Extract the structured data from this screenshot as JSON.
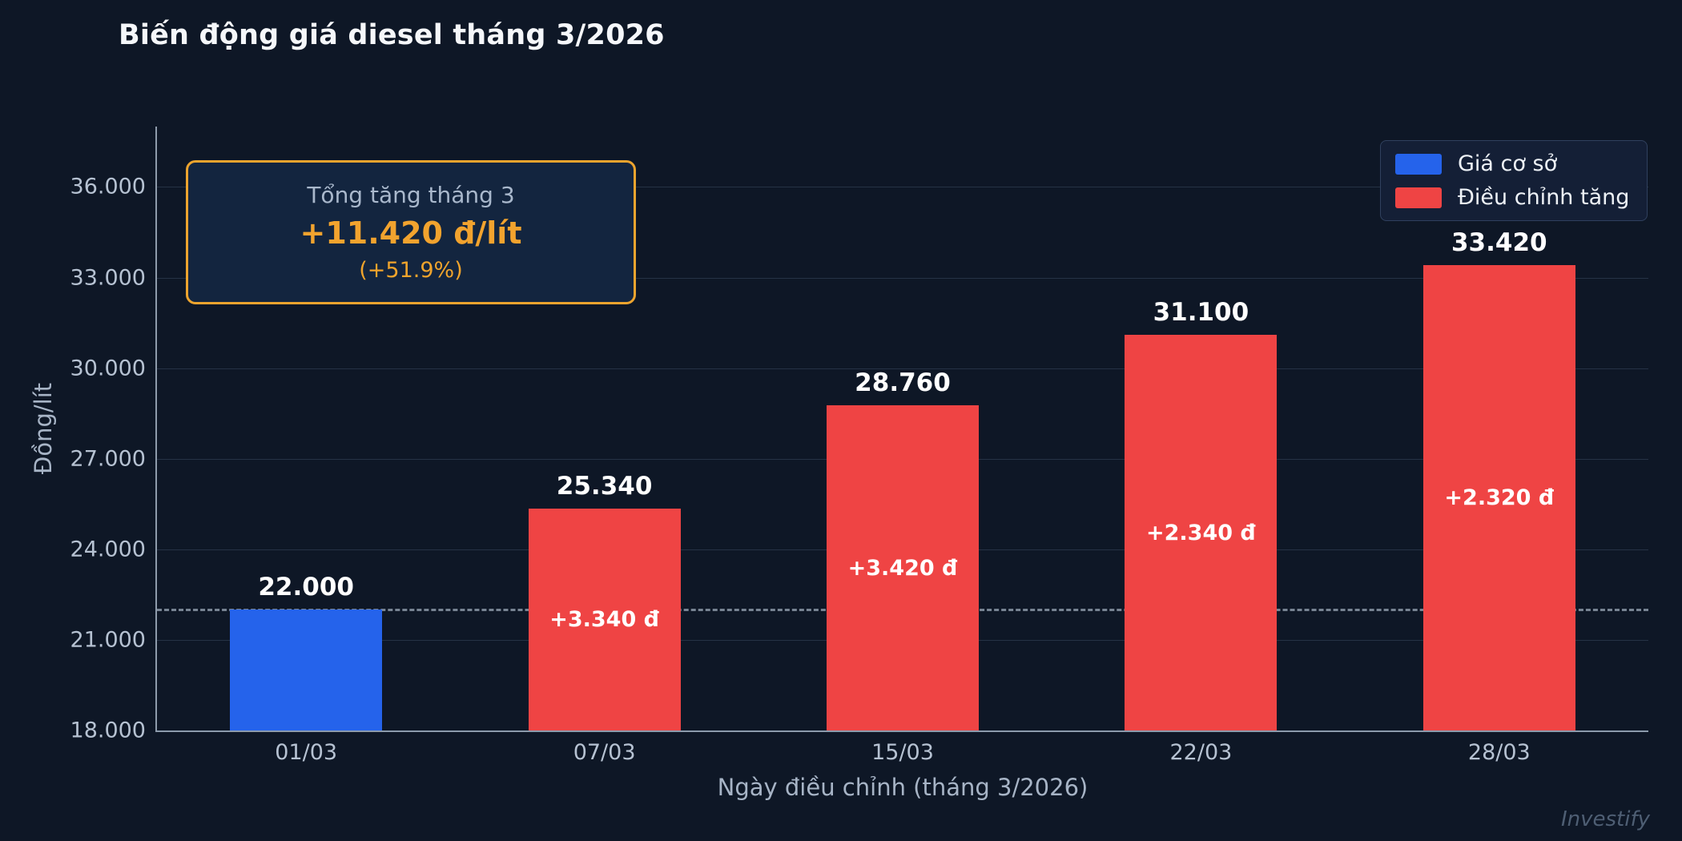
{
  "title": "Biến động giá diesel tháng 3/2026",
  "watermark": "Investify",
  "colors": {
    "background": "#0e1726",
    "base_bar": "#2563eb",
    "increase_bar": "#ef4444",
    "accent_orange": "#eda42e",
    "axis_text": "#b6c2d2",
    "grid": "rgba(125,148,180,0.22)"
  },
  "annotation": {
    "title": "Tổng tăng tháng 3",
    "value": "+11.420 đ/lít",
    "percent": "(+51.9%)"
  },
  "legend": {
    "items": [
      {
        "label": "Giá cơ sở",
        "color": "#2563eb"
      },
      {
        "label": "Điều chỉnh tăng",
        "color": "#ef4444"
      }
    ]
  },
  "chart_data": {
    "type": "bar",
    "title": "Biến động giá diesel tháng 3/2026",
    "xlabel": "Ngày điều chỉnh (tháng 3/2026)",
    "ylabel": "Đồng/lít",
    "categories": [
      "01/03",
      "07/03",
      "15/03",
      "22/03",
      "28/03"
    ],
    "values": [
      22000,
      25340,
      28760,
      31100,
      33420
    ],
    "value_labels": [
      "22.000",
      "25.340",
      "28.760",
      "31.100",
      "33.420"
    ],
    "delta_labels": [
      null,
      "+3.340 đ",
      "+3.420 đ",
      "+2.340 đ",
      "+2.320 đ"
    ],
    "series_colors": [
      "base",
      "increase",
      "increase",
      "increase",
      "increase"
    ],
    "ylim": [
      18000,
      38000
    ],
    "yticks": [
      18000,
      21000,
      24000,
      27000,
      30000,
      33000,
      36000
    ],
    "ytick_labels": [
      "18.000",
      "21.000",
      "24.000",
      "27.000",
      "30.000",
      "33.000",
      "36.000"
    ],
    "baseline": {
      "value": 22000,
      "style": "dashed"
    },
    "grid": true,
    "legend_position": "top-right"
  }
}
